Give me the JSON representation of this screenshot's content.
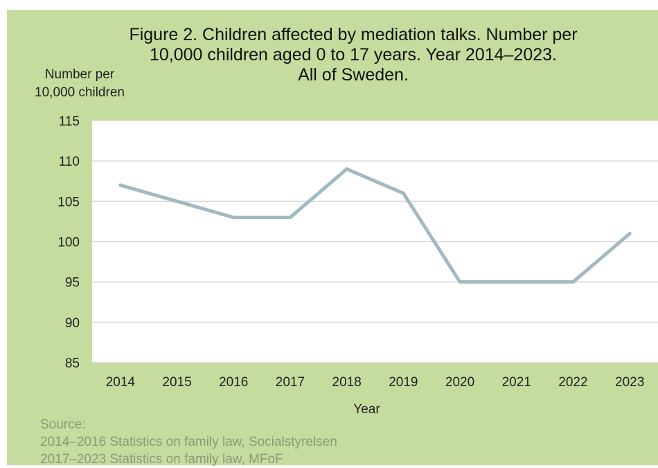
{
  "chart_data": {
    "type": "line",
    "title_lines": [
      "Figure 2. Children affected by mediation talks. Number per",
      "10,000 children aged 0 to 17 years. Year 2014–2023.",
      "All of Sweden."
    ],
    "ylabel_lines": [
      "Number per",
      "10,000 children"
    ],
    "xlabel": "Year",
    "categories": [
      "2014",
      "2015",
      "2016",
      "2017",
      "2018",
      "2019",
      "2020",
      "2021",
      "2022",
      "2023"
    ],
    "series": [
      {
        "values": [
          107,
          105,
          103,
          103,
          109,
          106,
          95,
          95,
          95,
          101
        ]
      }
    ],
    "ylim": [
      85,
      115
    ],
    "yticks": [
      115,
      110,
      105,
      100,
      95,
      90,
      85
    ],
    "grid": true,
    "colors": {
      "line": "#a3b9c1",
      "plot_bg": "#ffffff",
      "panel_bg": "#c5dc9e",
      "grid": "#d9d9d9"
    }
  },
  "source": {
    "lines": [
      "Source:",
      "2014–2016 Statistics on family law, Socialstyrelsen",
      "2017–2023 Statistics on family law, MFoF"
    ]
  }
}
